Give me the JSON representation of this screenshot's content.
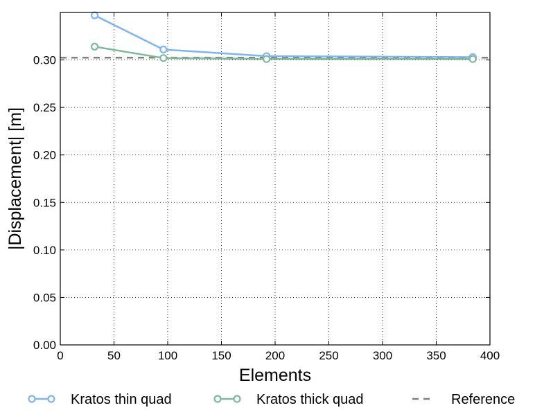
{
  "chart_data": {
    "type": "line",
    "title": "",
    "xlabel": "Elements",
    "ylabel": "|Displacement| [m]",
    "xlim": [
      0,
      400
    ],
    "ylim": [
      0,
      0.35
    ],
    "xticks": [
      0,
      50,
      100,
      150,
      200,
      250,
      300,
      350,
      400
    ],
    "xtick_labels": [
      "0",
      "50",
      "100",
      "150",
      "200",
      "250",
      "300",
      "350",
      "400"
    ],
    "yticks": [
      0,
      0.05,
      0.1,
      0.15,
      0.2,
      0.25,
      0.3
    ],
    "ytick_labels": [
      "0.00",
      "0.05",
      "0.10",
      "0.15",
      "0.20",
      "0.25",
      "0.30"
    ],
    "grid": true,
    "legend_position": "bottom",
    "series": [
      {
        "name": "Kratos thin quad",
        "color": "#7eb4f0",
        "marker": "circle-open",
        "x": [
          32,
          96,
          192,
          384
        ],
        "y": [
          0.347,
          0.311,
          0.304,
          0.303
        ]
      },
      {
        "name": "Kratos thick quad",
        "color": "#7fb99d",
        "marker": "circle-open",
        "x": [
          32,
          96,
          192,
          384
        ],
        "y": [
          0.314,
          0.302,
          0.301,
          0.301
        ]
      }
    ],
    "reference": {
      "name": "Reference",
      "color": "#808080",
      "style": "dashed",
      "y": 0.3024
    }
  }
}
